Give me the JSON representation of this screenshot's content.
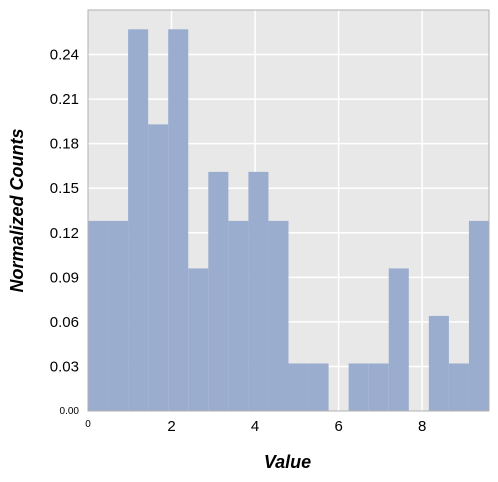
{
  "chart_data": {
    "type": "bar",
    "subtype": "histogram",
    "xlabel": "Value",
    "ylabel": "Normalized Counts",
    "xlim": [
      0,
      9.6
    ],
    "ylim": [
      0,
      0.27
    ],
    "grid": true,
    "bar_color": "#9badcf",
    "background_color": "#e8e8e8",
    "grid_color": "#ffffff",
    "x_ticks": [
      {
        "value": 0,
        "label": "0",
        "small": true
      },
      {
        "value": 2,
        "label": "2"
      },
      {
        "value": 4,
        "label": "4"
      },
      {
        "value": 6,
        "label": "6"
      },
      {
        "value": 8,
        "label": "8"
      }
    ],
    "y_ticks": [
      {
        "value": 0,
        "label": "0.00",
        "small": true
      },
      {
        "value": 0.03,
        "label": "0.03"
      },
      {
        "value": 0.06,
        "label": "0.06"
      },
      {
        "value": 0.09,
        "label": "0.09"
      },
      {
        "value": 0.12,
        "label": "0.12"
      },
      {
        "value": 0.15,
        "label": "0.15"
      },
      {
        "value": 0.18,
        "label": "0.18"
      },
      {
        "value": 0.21,
        "label": "0.21"
      },
      {
        "value": 0.24,
        "label": "0.24"
      }
    ],
    "bins": [
      {
        "x0": 0.0,
        "x1": 0.48,
        "value": 0.128
      },
      {
        "x0": 0.48,
        "x1": 0.96,
        "value": 0.128
      },
      {
        "x0": 0.96,
        "x1": 1.44,
        "value": 0.257
      },
      {
        "x0": 1.44,
        "x1": 1.92,
        "value": 0.193
      },
      {
        "x0": 1.92,
        "x1": 2.4,
        "value": 0.257
      },
      {
        "x0": 2.4,
        "x1": 2.88,
        "value": 0.096
      },
      {
        "x0": 2.88,
        "x1": 3.36,
        "value": 0.161
      },
      {
        "x0": 3.36,
        "x1": 3.84,
        "value": 0.128
      },
      {
        "x0": 3.84,
        "x1": 4.32,
        "value": 0.161
      },
      {
        "x0": 4.32,
        "x1": 4.8,
        "value": 0.128
      },
      {
        "x0": 4.8,
        "x1": 5.28,
        "value": 0.032
      },
      {
        "x0": 5.28,
        "x1": 5.76,
        "value": 0.032
      },
      {
        "x0": 5.76,
        "x1": 6.24,
        "value": 0.0
      },
      {
        "x0": 6.24,
        "x1": 6.72,
        "value": 0.032
      },
      {
        "x0": 6.72,
        "x1": 7.2,
        "value": 0.032
      },
      {
        "x0": 7.2,
        "x1": 7.68,
        "value": 0.096
      },
      {
        "x0": 7.68,
        "x1": 8.16,
        "value": 0.0
      },
      {
        "x0": 8.16,
        "x1": 8.64,
        "value": 0.064
      },
      {
        "x0": 8.64,
        "x1": 9.12,
        "value": 0.032
      },
      {
        "x0": 9.12,
        "x1": 9.6,
        "value": 0.128
      }
    ]
  }
}
